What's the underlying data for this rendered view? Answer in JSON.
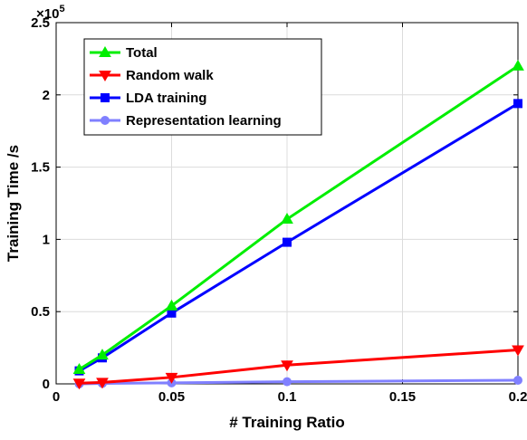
{
  "chart_data": {
    "type": "line",
    "title": "",
    "xlabel": "# Training Ratio",
    "ylabel": "Training Time /s",
    "y_exponent_base": "×10",
    "y_exponent_power": "5",
    "x_ticks": [
      0,
      0.05,
      0.1,
      0.15,
      0.2
    ],
    "x_tick_labels": [
      "0",
      "0.05",
      "0.1",
      "0.15",
      "0.2"
    ],
    "y_ticks": [
      0,
      0.5,
      1,
      1.5,
      2,
      2.5
    ],
    "y_tick_labels": [
      "0",
      "0.5",
      "1",
      "1.5",
      "2",
      "2.5"
    ],
    "xlim": [
      0,
      0.2
    ],
    "ylim": [
      0,
      2.5
    ],
    "grid": true,
    "legend_position": "top-left",
    "x": [
      0.01,
      0.02,
      0.05,
      0.1,
      0.2
    ],
    "series": [
      {
        "name": "Total",
        "color": "#00ee00",
        "marker": "triangle-up",
        "values": [
          0.1,
          0.2,
          0.54,
          1.14,
          2.2
        ]
      },
      {
        "name": "Random walk",
        "color": "#ff0000",
        "marker": "triangle-down",
        "values": [
          0.005,
          0.01,
          0.045,
          0.13,
          0.235
        ]
      },
      {
        "name": "LDA training",
        "color": "#0000ff",
        "marker": "square",
        "values": [
          0.09,
          0.18,
          0.49,
          0.98,
          1.94
        ]
      },
      {
        "name": "Representation learning",
        "color": "#8080ff",
        "marker": "circle",
        "values": [
          0.0,
          0.003,
          0.007,
          0.015,
          0.025
        ]
      }
    ]
  }
}
